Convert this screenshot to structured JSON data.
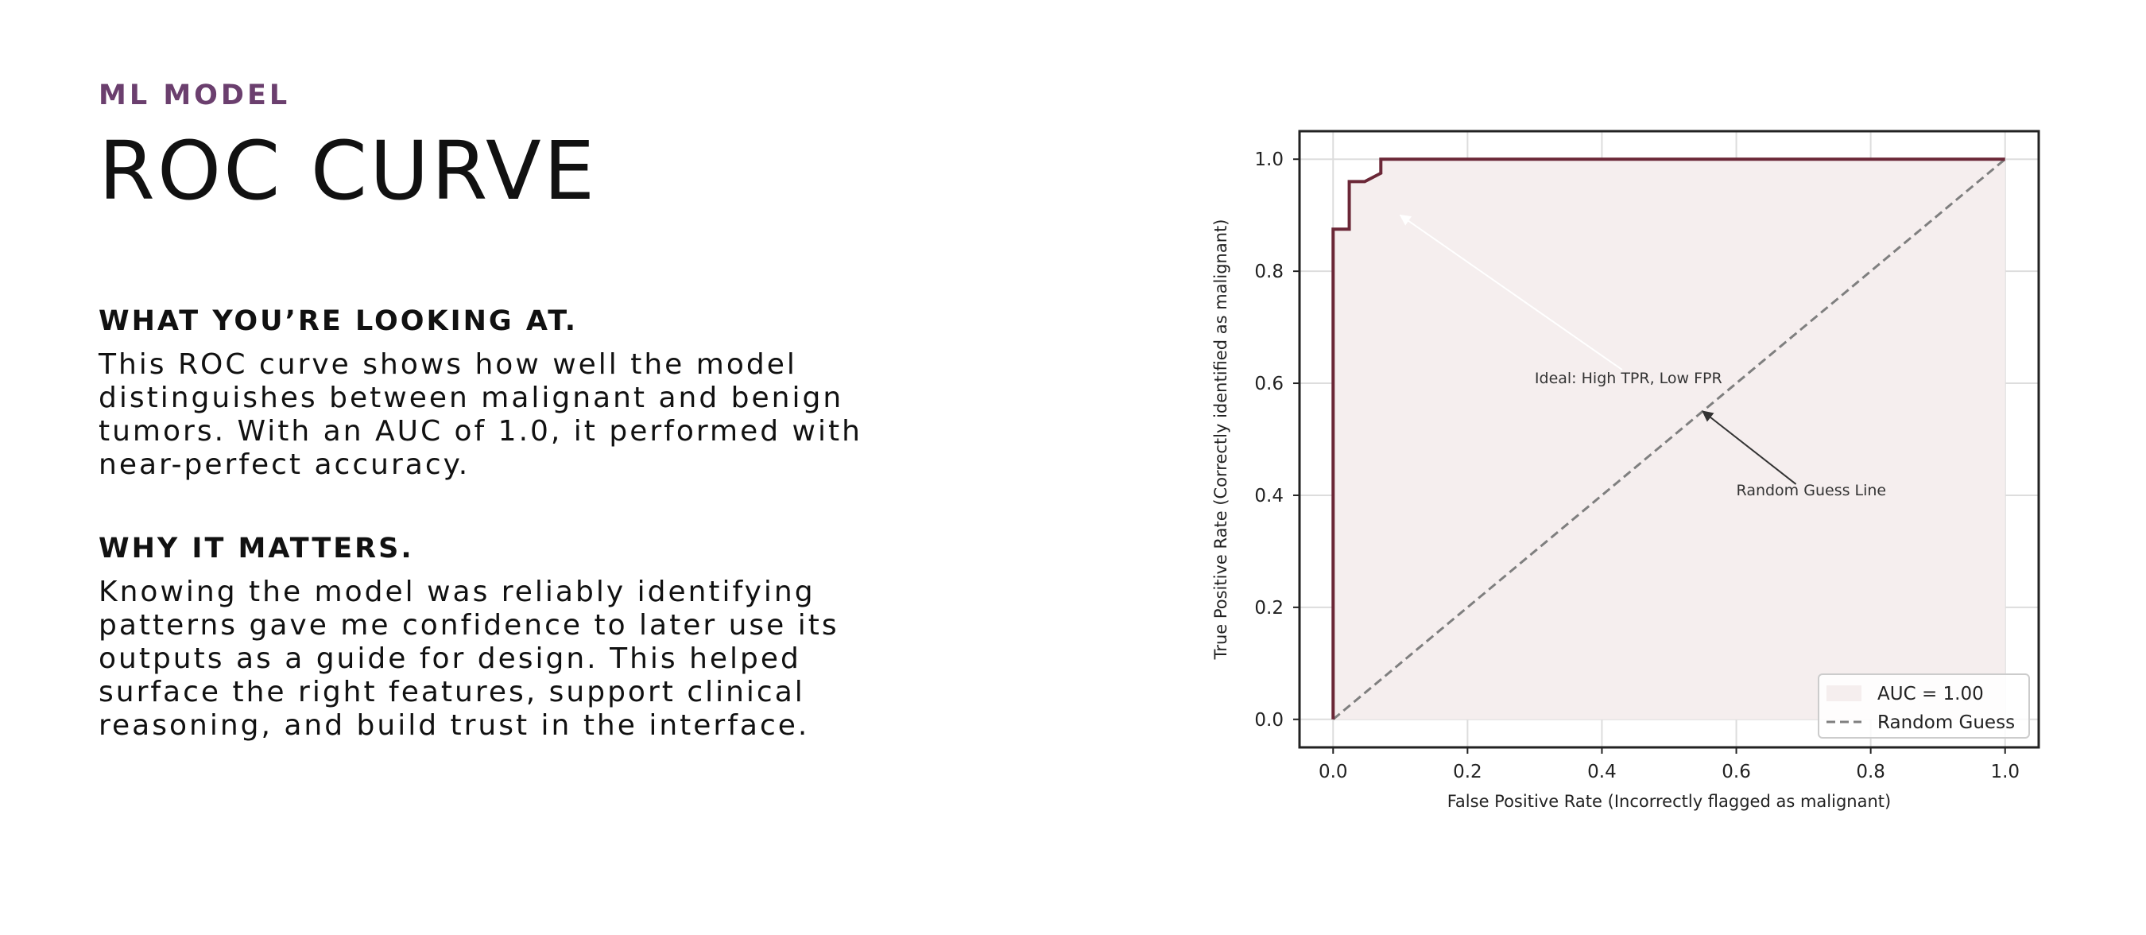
{
  "eyebrow": "ML MODEL",
  "title": "ROC CURVE",
  "section1": {
    "heading": "WHAT YOU’RE LOOKING AT.",
    "body": "This ROC curve shows how well the model distinguishes between malignant and benign tumors. With an AUC of 1.0, it performed with near-perfect accuracy."
  },
  "section2": {
    "heading": "WHY IT MATTERS.",
    "body": "Knowing the model was reliably identifying patterns gave me confidence to later use its outputs as a guide for design. This helped surface the right features, support clinical reasoning, and build trust in the interface."
  },
  "chart_data": {
    "type": "line",
    "xlabel": "False Positive Rate (Incorrectly flagged as malignant)",
    "ylabel": "True Positive Rate (Correctly identified as malignant)",
    "xlim": [
      -0.05,
      1.05
    ],
    "ylim": [
      -0.05,
      1.05
    ],
    "x_ticks": [
      0.0,
      0.2,
      0.4,
      0.6,
      0.8,
      1.0
    ],
    "y_ticks": [
      0.0,
      0.2,
      0.4,
      0.6,
      0.8,
      1.0
    ],
    "x_tick_labels": [
      "0.0",
      "0.2",
      "0.4",
      "0.6",
      "0.8",
      "1.0"
    ],
    "y_tick_labels": [
      "0.0",
      "0.2",
      "0.4",
      "0.6",
      "0.8",
      "1.0"
    ],
    "grid": true,
    "legend_position": "bottom-right",
    "series": [
      {
        "name": "AUC = 1.00",
        "style": "solid",
        "fill": true,
        "color": "#6b2737",
        "fill_color": "#f5eeee",
        "x": [
          0.0,
          0.0,
          0.0,
          0.024,
          0.024,
          0.047,
          0.071,
          0.071,
          1.0
        ],
        "y": [
          0.0,
          0.875,
          0.875,
          0.875,
          0.96,
          0.96,
          0.975,
          1.0,
          1.0
        ]
      },
      {
        "name": "Random Guess",
        "style": "dashed",
        "color": "#7f7f7f",
        "x": [
          0.0,
          1.0
        ],
        "y": [
          0.0,
          1.0
        ]
      }
    ],
    "annotations": [
      {
        "text": "Ideal: High TPR, Low FPR",
        "point": [
          0.1,
          0.9
        ],
        "text_pos": [
          0.3,
          0.6
        ],
        "arrow_color": "#ffffff"
      },
      {
        "text": "Random Guess Line",
        "point": [
          0.55,
          0.55
        ],
        "text_pos": [
          0.6,
          0.4
        ],
        "arrow_color": "#333333"
      }
    ]
  }
}
